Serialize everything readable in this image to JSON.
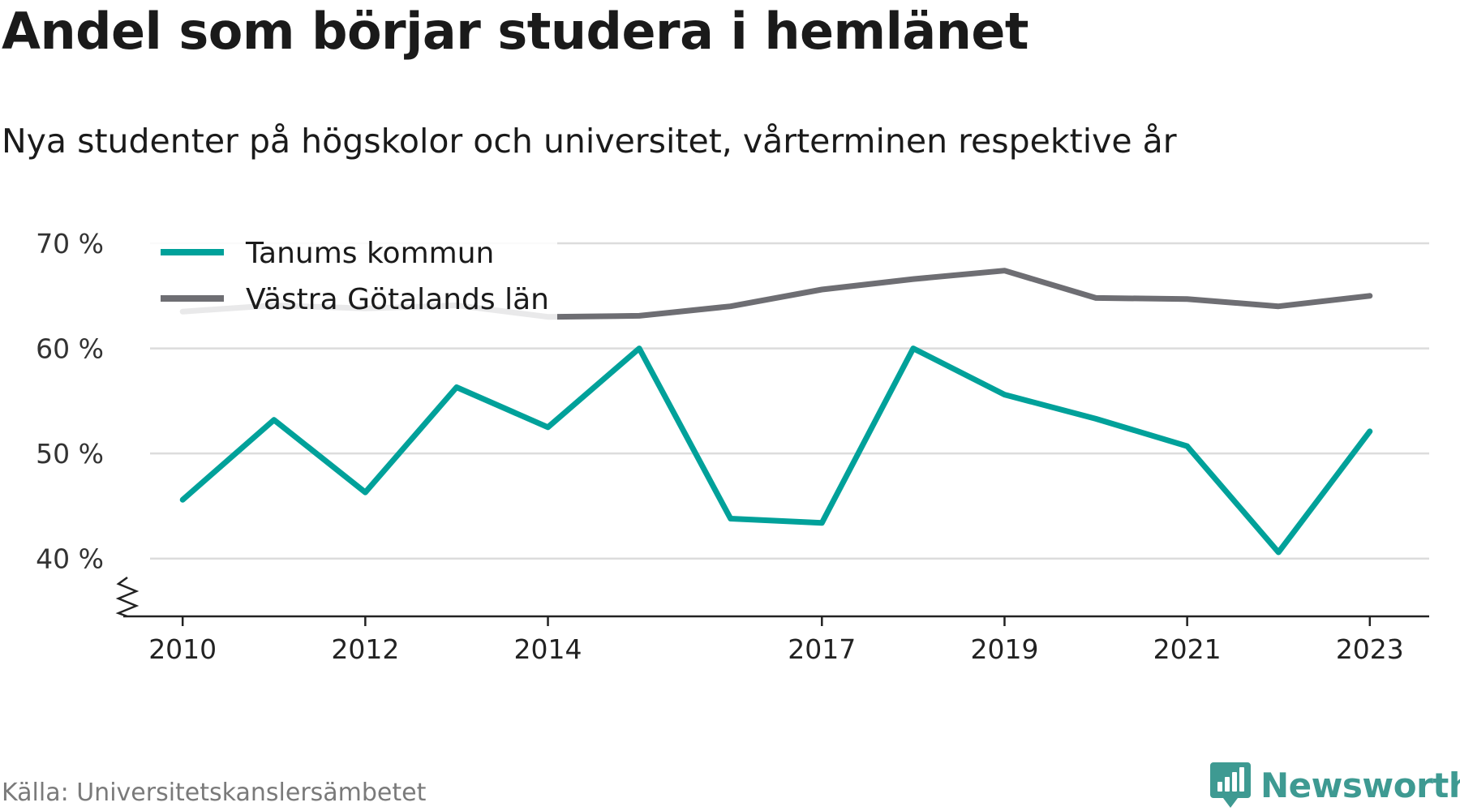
{
  "header": {
    "title": "Andel som börjar studera i hemlänet",
    "subtitle": "Nya studenter på högskolor och universitet, vårterminen respektive år"
  },
  "footer": {
    "source": "Källa: Universitetskanslersämbetet",
    "brand": "Newsworthy",
    "brand_color": "#3e9a92",
    "brand_icon": "bar-chart-pin-icon"
  },
  "chart_data": {
    "type": "line",
    "title": "Andel som börjar studera i hemlänet",
    "subtitle": "Nya studenter på högskolor och universitet, vårterminen respektive år",
    "xlabel": "",
    "ylabel": "",
    "x": [
      2010,
      2011,
      2012,
      2013,
      2014,
      2015,
      2016,
      2017,
      2018,
      2019,
      2020,
      2021,
      2022,
      2023
    ],
    "x_ticks": [
      2010,
      2012,
      2014,
      2017,
      2019,
      2021,
      2023
    ],
    "xlim": [
      2009.35,
      2023.65
    ],
    "y_ticks": [
      40,
      50,
      60,
      70
    ],
    "y_tick_labels": [
      "40 %",
      "50 %",
      "60 %",
      "70 %"
    ],
    "ylim": [
      34.5,
      70
    ],
    "y_axis_break": true,
    "grid": "horizontal",
    "legend_position": "top-left",
    "series": [
      {
        "name": "Tanums kommun",
        "color": "#00a19a",
        "values": [
          45.6,
          53.2,
          46.3,
          56.3,
          52.5,
          60.0,
          43.8,
          43.4,
          60.0,
          55.6,
          53.3,
          50.7,
          40.6,
          52.1
        ]
      },
      {
        "name": "Västra Götalands län",
        "color": "#6e6e73",
        "values": [
          63.5,
          64.1,
          63.8,
          64.1,
          63.0,
          63.1,
          64.0,
          65.6,
          66.6,
          67.4,
          64.8,
          64.7,
          64.0,
          65.0
        ]
      }
    ]
  }
}
